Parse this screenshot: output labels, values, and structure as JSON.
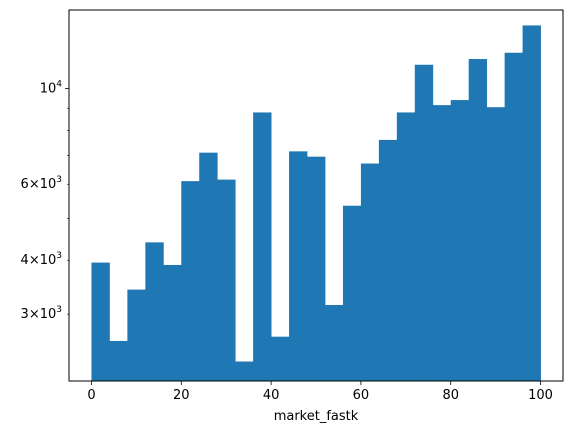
{
  "chart_data": {
    "type": "bar",
    "subtype": "histogram",
    "title": "",
    "xlabel": "market_fastk",
    "ylabel": "",
    "y_scale": "log",
    "bin_edges": [
      0,
      4,
      8,
      12,
      16,
      20,
      24,
      28,
      32,
      36,
      40,
      44,
      48,
      52,
      56,
      60,
      64,
      68,
      72,
      76,
      80,
      84,
      88,
      92,
      96,
      100
    ],
    "values": [
      3950,
      2600,
      3420,
      4400,
      3900,
      6100,
      7100,
      6150,
      2330,
      8800,
      2660,
      7150,
      6950,
      3150,
      5350,
      6700,
      7600,
      8800,
      11350,
      9150,
      9400,
      11700,
      9050,
      12100,
      14000
    ],
    "xlim": [
      -5,
      105
    ],
    "ylim": [
      2100,
      15200
    ],
    "x_ticks": [
      0,
      20,
      40,
      60,
      80,
      100
    ],
    "x_tick_labels": [
      "0",
      "20",
      "40",
      "60",
      "80",
      "100"
    ],
    "y_major_ticks": [
      10000
    ],
    "y_major_tick_labels": [
      {
        "base": "10",
        "exp": "4"
      }
    ],
    "y_minor_ticks": [
      3000,
      4000,
      6000
    ],
    "y_minor_tick_labels": [
      {
        "mult": "3",
        "base": "10",
        "exp": "3"
      },
      {
        "mult": "4",
        "base": "10",
        "exp": "3"
      },
      {
        "mult": "6",
        "base": "10",
        "exp": "3"
      }
    ],
    "y_unlabeled_minor_ticks": [
      5000,
      7000,
      8000,
      9000
    ],
    "bar_color": "#1f77b4",
    "grid": false,
    "legend": "none"
  }
}
